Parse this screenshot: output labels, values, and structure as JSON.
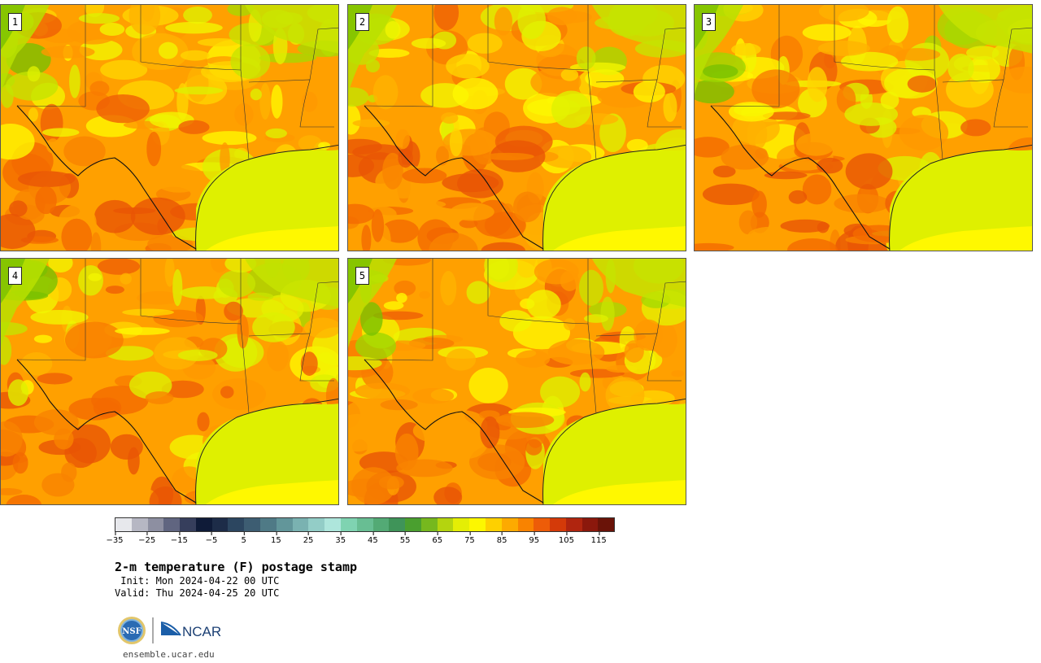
{
  "panels": [
    {
      "label": "1",
      "variant": 0
    },
    {
      "label": "2",
      "variant": 1
    },
    {
      "label": "3",
      "variant": 2
    },
    {
      "label": "4",
      "variant": 3
    },
    {
      "label": "5",
      "variant": 4
    }
  ],
  "colorbar": {
    "colors": [
      "#e7e8ec",
      "#b6b7c3",
      "#8d8fa1",
      "#606580",
      "#363e5c",
      "#0f1b38",
      "#1d2c48",
      "#2c4660",
      "#3d5d72",
      "#4f7a86",
      "#62969a",
      "#7ab2b1",
      "#93cdc7",
      "#aee6dc",
      "#7fd3b1",
      "#68be93",
      "#53aa75",
      "#3f9459",
      "#4a9f2f",
      "#76b81e",
      "#b4d40f",
      "#e4ee05",
      "#fdf700",
      "#fed000",
      "#fdaa00",
      "#f98300",
      "#ed5c08",
      "#d43a09",
      "#b0250f",
      "#8b180c",
      "#6a1308"
    ],
    "ticks": [
      "−35",
      "−25",
      "−15",
      "−5",
      "5",
      "15",
      "25",
      "35",
      "45",
      "55",
      "65",
      "75",
      "85",
      "95",
      "105",
      "115"
    ]
  },
  "title": "2-m temperature (F) postage stamp",
  "init": " Init: Mon 2024-04-22 00 UTC",
  "valid": "Valid: Thu 2024-04-25 20 UTC",
  "logos": {
    "nsf": "NSF",
    "ncar": "NCAR"
  },
  "site": "ensemble.ucar.edu"
}
